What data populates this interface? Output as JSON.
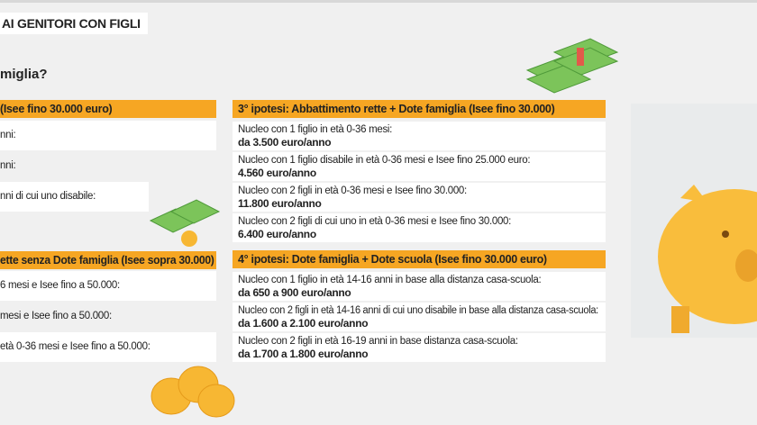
{
  "title": "AI GENITORI CON FIGLI",
  "question": "miglia?",
  "left": {
    "section1": {
      "header": "(Isee fino 30.000 euro)",
      "rows": [
        "nni:",
        "nni:",
        "nni di cui uno disabile:"
      ]
    },
    "section2": {
      "header": "ette senza Dote famiglia (Isee sopra 30.000)",
      "rows": [
        "6 mesi e Isee fino a 50.000:",
        "mesi e Isee fino a 50.000:",
        "età 0-36 mesi e Isee fino a 50.000:"
      ]
    }
  },
  "right": {
    "section3": {
      "header": "3° ipotesi: Abbattimento rette + Dote famiglia (Isee fino 30.000)",
      "rows": [
        {
          "text": "Nucleo con 1 figlio in età 0-36 mesi:",
          "amount": "da 3.500 euro/anno"
        },
        {
          "text": "Nucleo con 1 figlio disabile in età 0-36 mesi e Isee fino 25.000 euro:",
          "amount": "4.560 euro/anno"
        },
        {
          "text": "Nucleo con 2 figli in età 0-36 mesi e Isee fino 30.000:",
          "amount": "11.800 euro/anno"
        },
        {
          "text": "Nucleo con 2 figli di cui uno in età 0-36 mesi e Isee fino 30.000:",
          "amount": "6.400 euro/anno"
        }
      ]
    },
    "section4": {
      "header": "4° ipotesi: Dote famiglia + Dote scuola (Isee fino 30.000 euro)",
      "rows": [
        {
          "text": "Nucleo con 1 figlio in età 14-16 anni in base alla distanza casa-scuola:",
          "amount": "da 650 a 900 euro/anno"
        },
        {
          "text": "Nucleo con 2 figli in età 14-16 anni di cui uno disabile in base alla distanza casa-scuola:",
          "amount": "da 1.600 a 2.100 euro/anno"
        },
        {
          "text": "Nucleo con 2 figli in età 16-19 anni in base distanza casa-scuola:",
          "amount": "da 1.700 a 1.800 euro/anno"
        }
      ]
    }
  },
  "colors": {
    "accent": "#f6a623",
    "money": "#7cc45a",
    "coin": "#f7b733",
    "piggy": "#f9bd3c"
  }
}
